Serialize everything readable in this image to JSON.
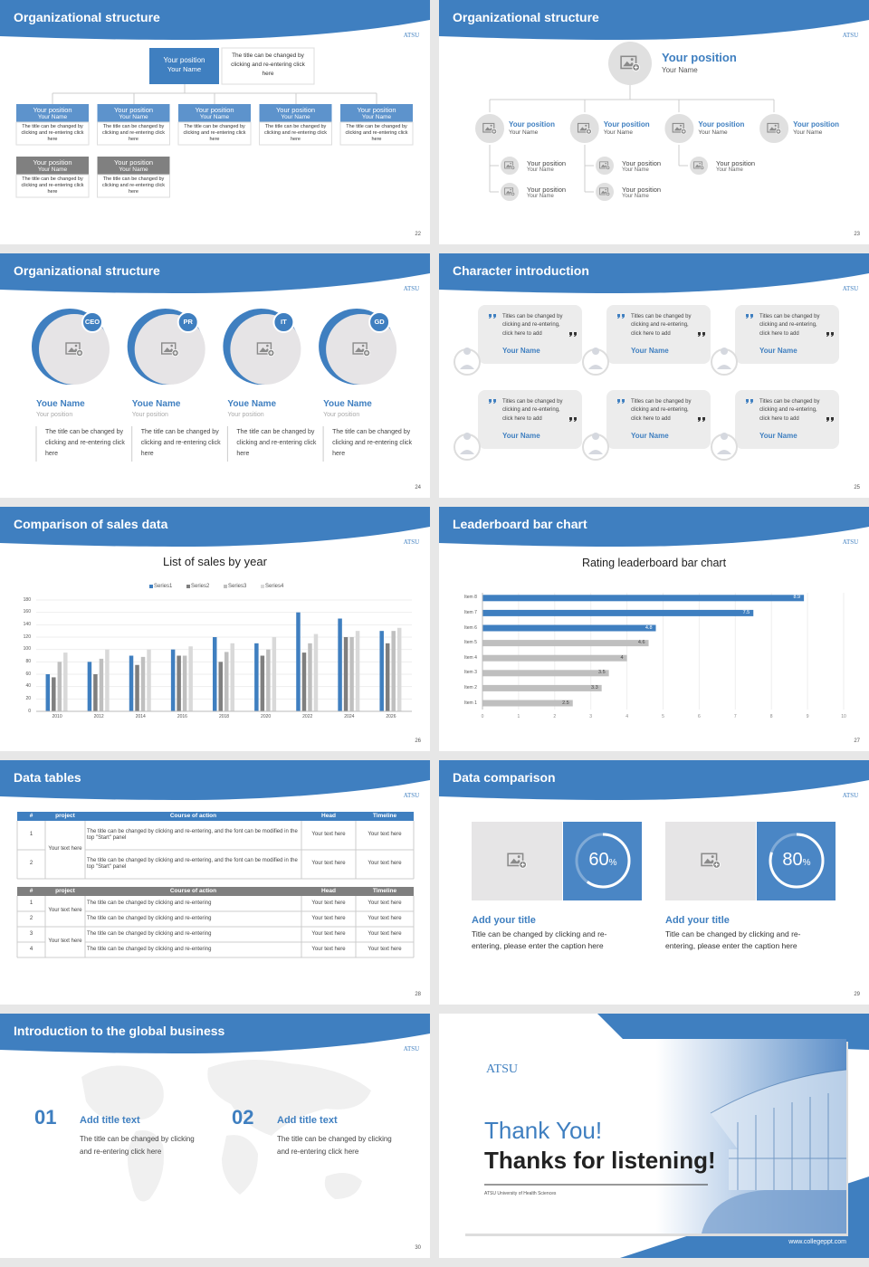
{
  "slides": [
    {
      "title": "Organizational structure",
      "badge": "ATSU",
      "page": 22,
      "top": {
        "position": "Your position",
        "name": "Your Name",
        "text": "The title can be changed by clicking and re-entering click here",
        "color": "#3f7fc0"
      },
      "boxes": [
        {
          "position": "Your position",
          "name": "Your Name",
          "text": "The title can be changed by clicking and re-entering click here",
          "color": "#5d93cc"
        },
        {
          "position": "Your position",
          "name": "Your Name",
          "text": "The title can be changed by clicking and re-entering click here",
          "color": "#5d93cc"
        },
        {
          "position": "Your position",
          "name": "Your Name",
          "text": "The title can be changed by clicking and re-entering click here",
          "color": "#5d93cc"
        },
        {
          "position": "Your position",
          "name": "Your Name",
          "text": "The title can be changed by clicking and re-entering click here",
          "color": "#5d93cc"
        },
        {
          "position": "Your position",
          "name": "Your Name",
          "text": "The title can be changed by clicking and re-entering click here",
          "color": "#5d93cc"
        },
        {
          "position": "Your position",
          "name": "Your Name",
          "text": "The title can be changed by clicking and re-entering click here",
          "color": "#808080"
        },
        {
          "position": "Your position",
          "name": "Your Name",
          "text": "The title can be changed by clicking and re-entering click here",
          "color": "#808080"
        }
      ]
    },
    {
      "title": "Organizational structure",
      "badge": "ATSU",
      "page": 23,
      "head": {
        "position": "Your position",
        "name": "Your Name"
      },
      "level2": [
        {
          "position": "Your position",
          "name": "Your Name"
        },
        {
          "position": "Your position",
          "name": "Your Name"
        },
        {
          "position": "Your position",
          "name": "Your Name"
        },
        {
          "position": "Your position",
          "name": "Your Name"
        }
      ],
      "level3": [
        {
          "position": "Your position",
          "name": "Your Name"
        },
        {
          "position": "Your position",
          "name": "Your Name"
        },
        {
          "position": "Your position",
          "name": "Your Name"
        },
        {
          "position": "Your position",
          "name": "Your Name"
        },
        {
          "position": "Your position",
          "name": "Your Name"
        }
      ]
    },
    {
      "title": "Organizational structure",
      "badge": "ATSU",
      "page": 24,
      "people": [
        {
          "badge": "CEO",
          "name": "Youe Name",
          "position": "Your position",
          "text": "The title can be changed by clicking and re-entering click here"
        },
        {
          "badge": "PR",
          "name": "Youe Name",
          "position": "Your position",
          "text": "The title can be changed by clicking and re-entering click here"
        },
        {
          "badge": "IT",
          "name": "Youe Name",
          "position": "Your position",
          "text": "The title can be changed by clicking and re-entering click here"
        },
        {
          "badge": "GD",
          "name": "Youe Name",
          "position": "Your position",
          "text": "The title can be changed by clicking and re-entering click here"
        }
      ]
    },
    {
      "title": "Character introduction",
      "badge": "ATSU",
      "page": 25,
      "cards": [
        {
          "text": "Titles can be changed by clicking and re-entering, click here to add",
          "name": "Your Name"
        },
        {
          "text": "Titles can be changed by clicking and re-entering, click here to add",
          "name": "Your Name"
        },
        {
          "text": "Titles can be changed by clicking and re-entering, click here to add",
          "name": "Your Name"
        },
        {
          "text": "Titles can be changed by clicking and re-entering, click here to add",
          "name": "Your Name"
        },
        {
          "text": "Titles can be changed by clicking and re-entering, click here to add",
          "name": "Your Name"
        },
        {
          "text": "Titles can be changed by clicking and re-entering, click here to add",
          "name": "Your Name"
        }
      ]
    },
    {
      "title": "Comparison of sales data",
      "badge": "ATSU",
      "page": 26,
      "chart": {
        "type": "bar",
        "title": "List of sales by year",
        "categories": [
          "2010",
          "2012",
          "2014",
          "2016",
          "2018",
          "2020",
          "2022",
          "2024",
          "2026"
        ],
        "series": [
          {
            "name": "Series1",
            "color": "#3f7fc0",
            "values": [
              60,
              80,
              90,
              100,
              120,
              110,
              160,
              150,
              130
            ]
          },
          {
            "name": "Series2",
            "color": "#7f7f7f",
            "values": [
              55,
              60,
              75,
              90,
              80,
              90,
              95,
              120,
              110
            ]
          },
          {
            "name": "Series3",
            "color": "#bfbfbf",
            "values": [
              80,
              85,
              88,
              90,
              96,
              100,
              110,
              120,
              130
            ]
          },
          {
            "name": "Series4",
            "color": "#d9d9d9",
            "values": [
              95,
              100,
              100,
              105,
              110,
              120,
              125,
              130,
              135
            ]
          }
        ],
        "ylim": [
          0,
          180
        ],
        "yticks": [
          0,
          20,
          40,
          60,
          80,
          100,
          120,
          140,
          160,
          180
        ],
        "grid": true,
        "legend": "top"
      }
    },
    {
      "title": "Leaderboard bar chart",
      "badge": "ATSU",
      "page": 27,
      "chart": {
        "type": "hbar",
        "title": "Rating leaderboard bar chart",
        "categories": [
          "Item 1",
          "Item 2",
          "Item 3",
          "Item 4",
          "Item 5",
          "Item 6",
          "Item 7",
          "Item 8"
        ],
        "values": [
          2.5,
          3.3,
          3.5,
          4,
          4.6,
          4.8,
          7.5,
          8.9
        ],
        "colors": [
          "#bfbfbf",
          "#bfbfbf",
          "#bfbfbf",
          "#bfbfbf",
          "#bfbfbf",
          "#3f7fc0",
          "#3f7fc0",
          "#3f7fc0"
        ],
        "xlim": [
          0,
          10
        ],
        "xticks": [
          0,
          1,
          2,
          3,
          4,
          5,
          6,
          7,
          8,
          9,
          10
        ],
        "grid": true
      }
    },
    {
      "title": "Data tables",
      "badge": "ATSU",
      "page": 28,
      "tables": [
        {
          "color": "#3f7fc0",
          "header": [
            "#",
            "project",
            "Course of action",
            "Head",
            "Timeline"
          ],
          "projects": [
            {
              "text": "Your text here",
              "rows": [
                [
                  "1",
                  "The title can be changed by clicking and re-entering, and the font can be modified in the top \"Start\" panel",
                  "Your text here",
                  "Your text here"
                ],
                [
                  "2",
                  "The title can be changed by clicking and re-entering, and the font can be modified in the top \"Start\" panel",
                  "Your text here",
                  "Your text here"
                ]
              ]
            }
          ]
        },
        {
          "color": "#7f7f7f",
          "header": [
            "#",
            "project",
            "Course of action",
            "Head",
            "Timeline"
          ],
          "projects": [
            {
              "text": "Your text here",
              "rows": [
                [
                  "1",
                  "The title can be changed by clicking and re-entering",
                  "Your text here",
                  "Your text here"
                ],
                [
                  "2",
                  "The title can be changed by clicking and re-entering",
                  "Your text here",
                  "Your text here"
                ]
              ]
            },
            {
              "text": "Your text here",
              "rows": [
                [
                  "3",
                  "The title can be changed by clicking and re-entering",
                  "Your text here",
                  "Your text here"
                ],
                [
                  "4",
                  "The title can be changed by clicking and re-entering",
                  "Your text here",
                  "Your text here"
                ]
              ]
            }
          ]
        }
      ]
    },
    {
      "title": "Data comparison",
      "badge": "ATSU",
      "page": 29,
      "stats": [
        {
          "percent": 60,
          "unit": "%",
          "title": "Add your title",
          "text": "Title can be changed by clicking and re-entering, please enter the caption here"
        },
        {
          "percent": 80,
          "unit": "%",
          "title": "Add your title",
          "text": "Title can be changed by clicking and re-entering, please enter the caption here"
        }
      ]
    },
    {
      "title": "Introduction to the global business",
      "badge": "ATSU",
      "page": 30,
      "items": [
        {
          "number": "01",
          "title": "Add title text",
          "text": "The title can be changed by clicking and re-entering click here"
        },
        {
          "number": "02",
          "title": "Add title text",
          "text": "The title can be changed by clicking and re-entering click here"
        }
      ]
    },
    {
      "thanks": {
        "brand": "ATSU",
        "line1": "Thank You!",
        "line2": "Thanks for listening!",
        "subtitle": "ATSU University of Health Sciences",
        "url": "www.collegeppt.com"
      }
    }
  ]
}
